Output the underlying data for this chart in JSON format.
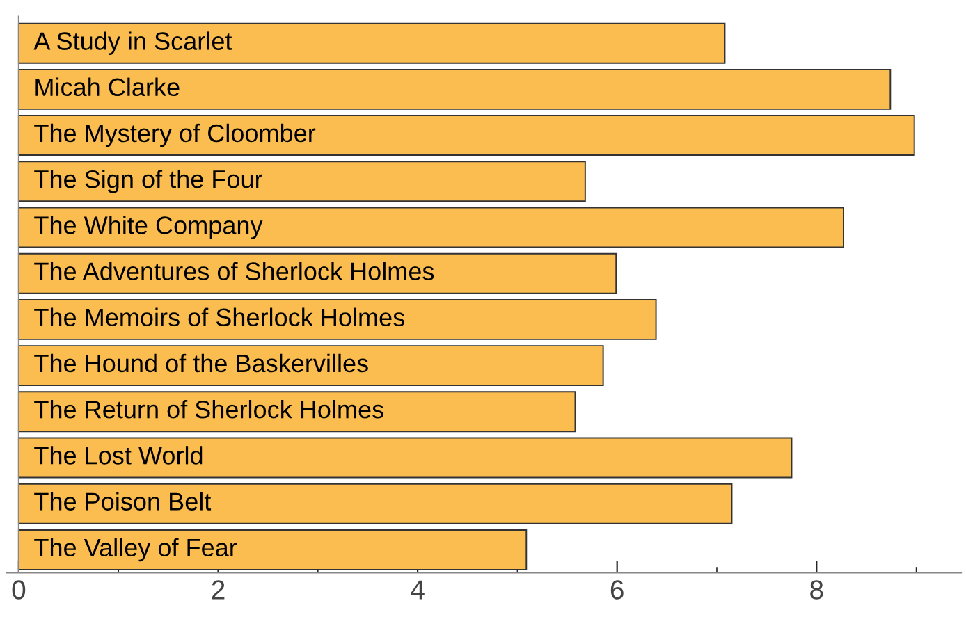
{
  "chart_data": {
    "type": "bar",
    "orientation": "horizontal",
    "categories": [
      "A Study in Scarlet",
      "Micah Clarke",
      "The Mystery of Cloomber",
      "The Sign of the Four",
      "The White Company",
      "The Adventures of Sherlock Holmes",
      "The Memoirs of Sherlock Holmes",
      "The Hound of the Baskervilles",
      "The Return of Sherlock Holmes",
      "The Lost World",
      "The Poison Belt",
      "The Valley of Fear"
    ],
    "values": [
      7.08,
      8.74,
      8.98,
      5.68,
      8.27,
      5.99,
      6.39,
      5.86,
      5.58,
      7.75,
      7.15,
      5.09
    ],
    "color": "#fbbd50",
    "xlim": [
      -0.12,
      9.45
    ],
    "xticks": [
      0,
      {
        "value": 1,
        "label": null
      },
      2,
      {
        "value": 3,
        "label": null
      },
      4,
      {
        "value": 5,
        "label": null
      },
      6,
      {
        "value": 7,
        "label": null
      },
      8,
      {
        "value": 9,
        "label": null
      }
    ],
    "grid": false,
    "legend": false
  }
}
